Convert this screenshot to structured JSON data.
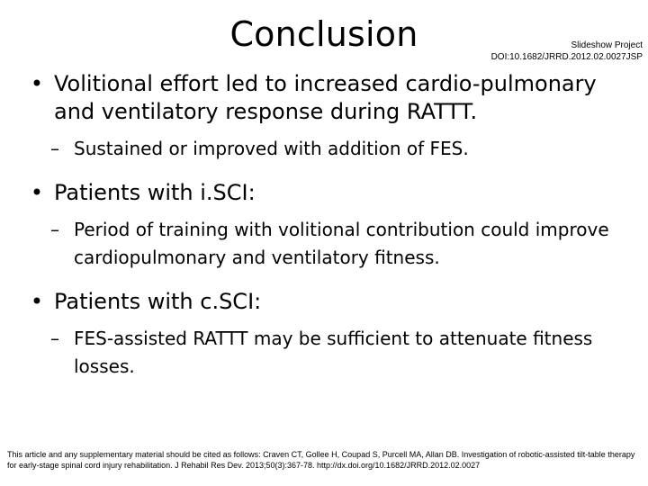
{
  "slide": {
    "title": "Conclusion",
    "meta_line1": "Slideshow Project",
    "meta_line2": "DOI:10.1682/JRRD.2012.02.0027JSP",
    "bullets": [
      {
        "text": "Volitional effort led to increased cardio-pulmonary and ventilatory response during RATTT.",
        "sub": "Sustained or improved with addition of FES."
      },
      {
        "text": "Patients with i.SCI:",
        "sub": "Period of training with volitional contribution could improve cardiopulmonary and ventilatory fitness."
      },
      {
        "text": "Patients with c.SCI:",
        "sub": "FES-assisted RATTT may be sufficient to attenuate fitness losses."
      }
    ],
    "citation": "This article and any supplementary material should be cited as follows: Craven CT, Gollee H, Coupad S, Purcell MA, Allan DB. Investigation of robotic-assisted tilt-table therapy for early-stage spinal cord injury rehabilitation. J Rehabil Res Dev. 2013;50(3):367-78. http://dx.doi.org/10.1682/JRRD.2012.02.0027"
  }
}
